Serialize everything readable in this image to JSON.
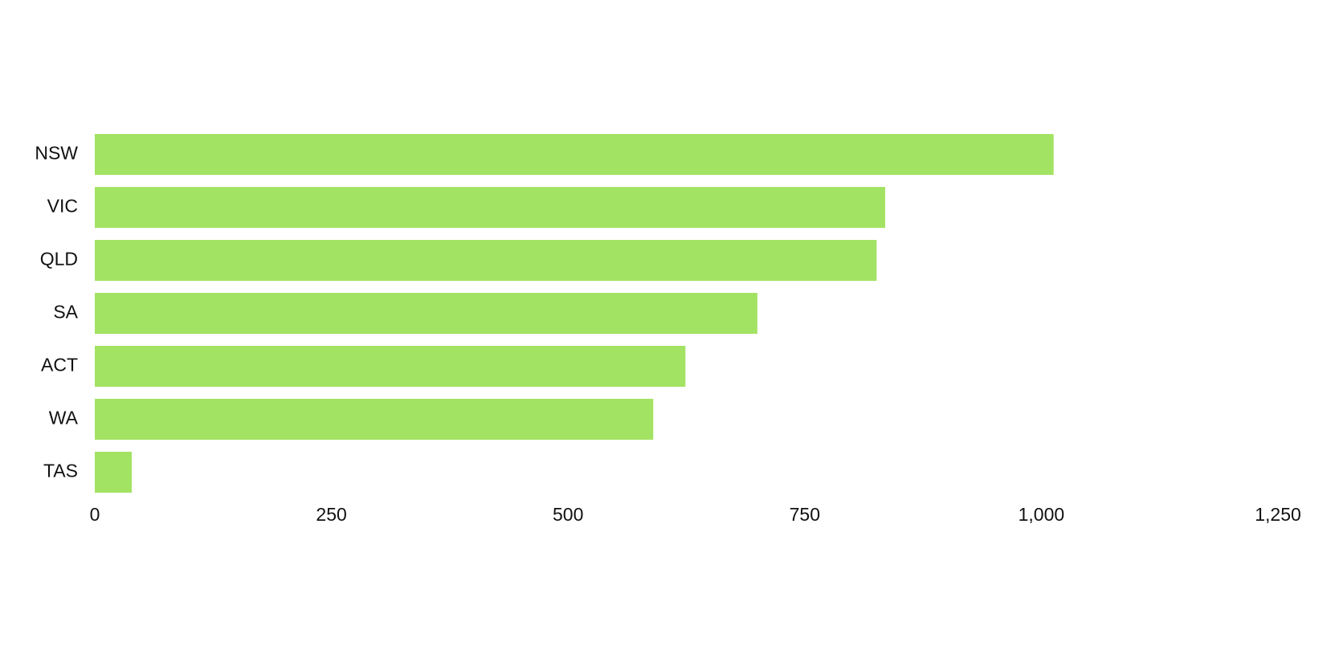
{
  "chart_data": {
    "type": "bar",
    "orientation": "horizontal",
    "categories": [
      "NSW",
      "VIC",
      "QLD",
      "SA",
      "ACT",
      "WA",
      "TAS"
    ],
    "values": [
      1013,
      835,
      826,
      700,
      624,
      590,
      39
    ],
    "color": "#a3e363",
    "xlim": [
      0,
      1250
    ],
    "xticks": [
      0,
      250,
      500,
      750,
      {
        "value": 1000,
        "label": "1,000"
      },
      {
        "value": 1250,
        "label": "1,250"
      }
    ],
    "grid": false
  }
}
